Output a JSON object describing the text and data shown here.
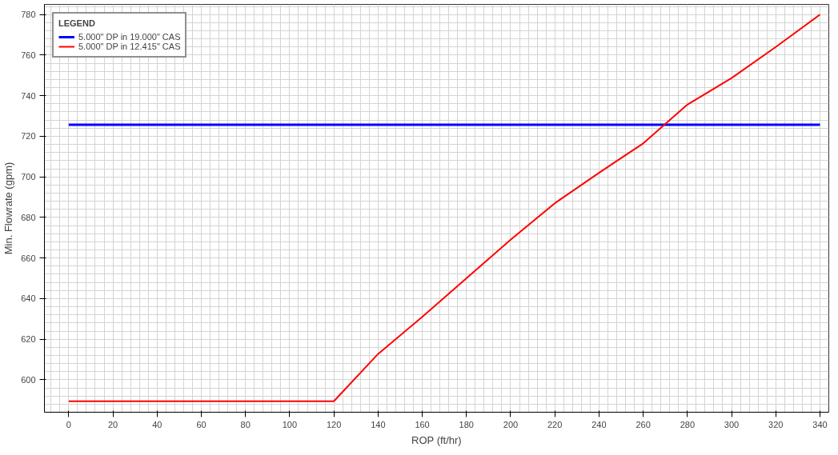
{
  "chart_data": {
    "type": "line",
    "xlabel": "ROP (ft/hr)",
    "ylabel": "Min. Flowrate (gpm)",
    "legend_title": "LEGEND",
    "legend": "top left",
    "grid": true,
    "marker": "none",
    "line_style": "solid",
    "xlim": [
      -11,
      344
    ],
    "xticks": [
      0,
      20,
      40,
      60,
      80,
      100,
      120,
      140,
      160,
      180,
      200,
      220,
      240,
      260,
      280,
      300,
      320,
      340
    ],
    "ylim": [
      584,
      785
    ],
    "yticks": [
      600,
      620,
      640,
      660,
      680,
      700,
      720,
      740,
      760,
      780
    ],
    "series": [
      {
        "name": "5.000\" DP in 19.000\" CAS",
        "color": "#0000ff",
        "x": [
          0,
          340
        ],
        "values": [
          725.7,
          725.7
        ]
      },
      {
        "name": "5.000\" DP in 12.415\" CAS",
        "color": "#ff0000",
        "x": [
          0,
          120,
          140,
          160,
          180,
          200,
          220,
          240,
          260,
          280,
          300,
          320,
          340
        ],
        "values": [
          589.4,
          589.4,
          612.7,
          631,
          650,
          669,
          687,
          702,
          716.5,
          735.6,
          748.7,
          764,
          780
        ]
      }
    ]
  }
}
